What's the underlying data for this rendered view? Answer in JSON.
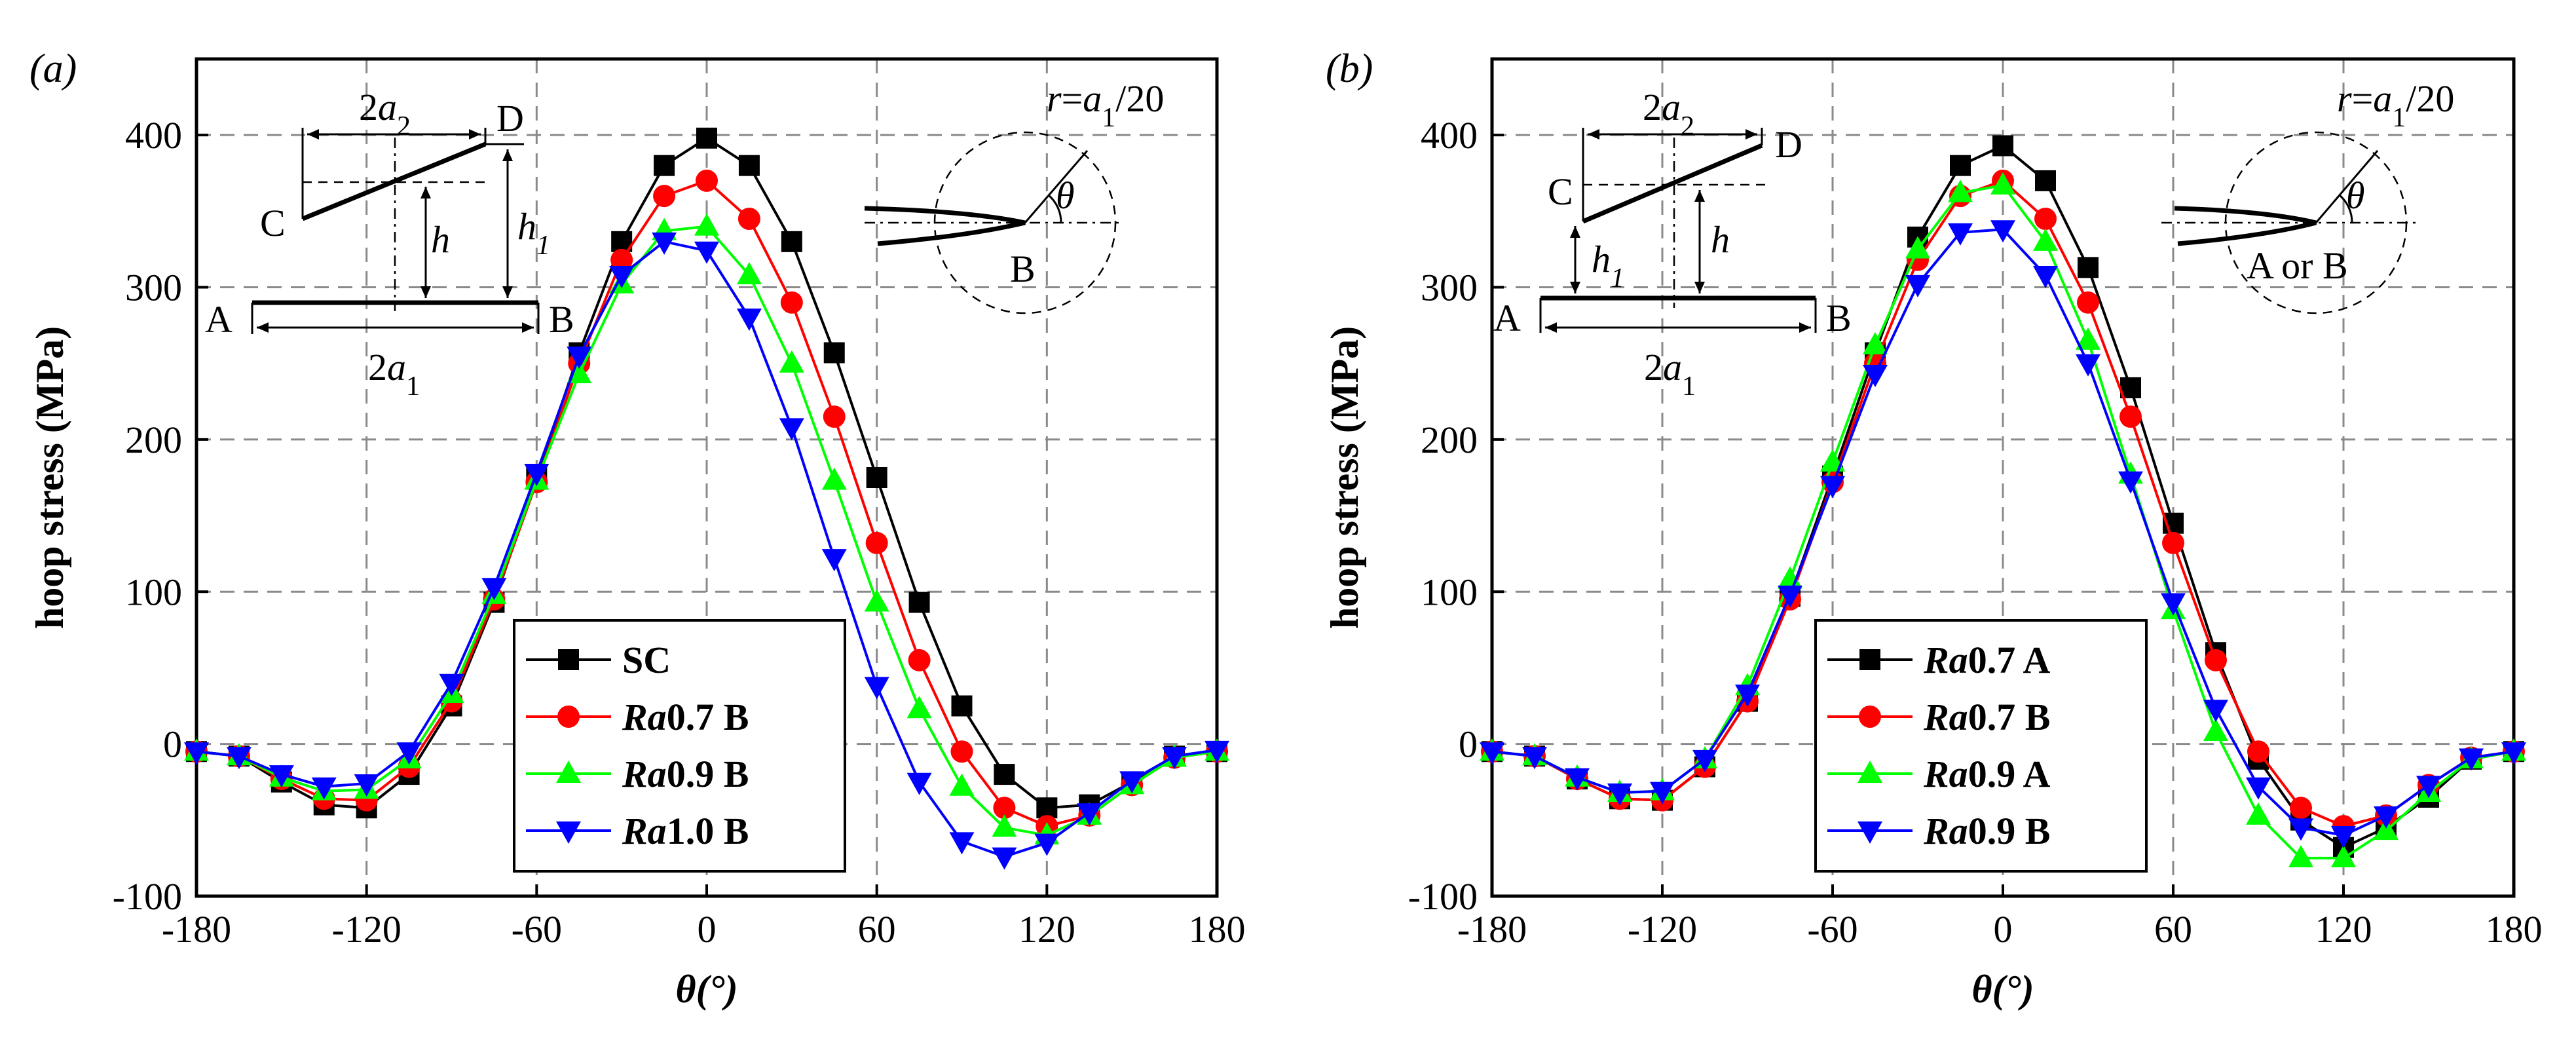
{
  "chart_data": [
    {
      "type": "line",
      "panel_label": "(a)",
      "xlabel": "θ(°)",
      "ylabel": "hoop stress (MPa)",
      "xlim": [
        -180,
        180
      ],
      "ylim": [
        -100,
        450
      ],
      "xticks": [
        -180,
        -120,
        -60,
        0,
        60,
        120,
        180
      ],
      "yticks": [
        -100,
        0,
        100,
        200,
        300,
        400
      ],
      "grid": true,
      "legend_position": "bottom-center",
      "annotation": "r=a1/20",
      "inset": {
        "left_labels": {
          "C": "C",
          "D": "D",
          "A": "A",
          "B": "B",
          "top_width": "2a2",
          "bottom_width": "2a1",
          "h": "h",
          "h1": "h1"
        },
        "right_labels": {
          "tip": "B",
          "angle": "θ"
        }
      },
      "x": [
        -180,
        -165,
        -150,
        -135,
        -120,
        -105,
        -90,
        -75,
        -60,
        -45,
        -30,
        -15,
        0,
        15,
        30,
        45,
        60,
        75,
        90,
        105,
        120,
        135,
        150,
        165,
        180
      ],
      "series": [
        {
          "name": "SC",
          "prefix": "",
          "suffix": "",
          "color": "#000000",
          "marker": "square",
          "values": [
            -5,
            -8,
            -25,
            -40,
            -42,
            -20,
            25,
            93,
            175,
            257,
            330,
            380,
            398,
            380,
            330,
            257,
            175,
            93,
            25,
            -20,
            -42,
            -40,
            -25,
            -8,
            -5
          ]
        },
        {
          "name": "Ra0.7 B",
          "prefix": "Ra",
          "suffix": "0.7 B",
          "color": "#ff0000",
          "marker": "circle",
          "values": [
            -5,
            -8,
            -23,
            -36,
            -37,
            -15,
            28,
            95,
            172,
            250,
            318,
            360,
            370,
            345,
            290,
            215,
            132,
            55,
            -5,
            -42,
            -54,
            -47,
            -27,
            -9,
            -5
          ]
        },
        {
          "name": "Ra0.9 B",
          "prefix": "Ra",
          "suffix": "0.9 B",
          "color": "#00ff00",
          "marker": "triangle-up",
          "values": [
            -5,
            -8,
            -22,
            -31,
            -30,
            -10,
            33,
            98,
            173,
            243,
            302,
            337,
            340,
            308,
            250,
            173,
            93,
            23,
            -28,
            -55,
            -60,
            -47,
            -27,
            -9,
            -5
          ]
        },
        {
          "name": "Ra1.0 B",
          "prefix": "Ra",
          "suffix": "1.0 B",
          "color": "#0000ff",
          "marker": "triangle-down",
          "values": [
            -5,
            -8,
            -20,
            -28,
            -26,
            -5,
            40,
            103,
            178,
            255,
            308,
            330,
            324,
            280,
            208,
            122,
            38,
            -25,
            -64,
            -74,
            -65,
            -45,
            -24,
            -8,
            -4
          ]
        }
      ]
    },
    {
      "type": "line",
      "panel_label": "(b)",
      "xlabel": "θ(°)",
      "ylabel": "hoop stress (MPa)",
      "xlim": [
        -180,
        180
      ],
      "ylim": [
        -100,
        450
      ],
      "xticks": [
        -180,
        -120,
        -60,
        0,
        60,
        120,
        180
      ],
      "yticks": [
        -100,
        0,
        100,
        200,
        300,
        400
      ],
      "grid": true,
      "legend_position": "bottom-center",
      "annotation": "r=a1/20",
      "inset": {
        "left_labels": {
          "C": "C",
          "D": "D",
          "A": "A",
          "B": "B",
          "top_width": "2a2",
          "bottom_width": "2a1",
          "h": "h",
          "h1": "h1"
        },
        "right_labels": {
          "tip": "A or B",
          "angle": "θ"
        }
      },
      "x": [
        -180,
        -165,
        -150,
        -135,
        -120,
        -105,
        -90,
        -75,
        -60,
        -45,
        -30,
        -15,
        0,
        15,
        30,
        45,
        60,
        75,
        90,
        105,
        120,
        135,
        150,
        165,
        180
      ],
      "series": [
        {
          "name": "Ra0.7 A",
          "prefix": "Ra",
          "suffix": "0.7 A",
          "color": "#000000",
          "marker": "square",
          "values": [
            -5,
            -8,
            -23,
            -36,
            -37,
            -15,
            28,
            97,
            176,
            257,
            333,
            380,
            393,
            370,
            313,
            234,
            145,
            60,
            -10,
            -50,
            -68,
            -55,
            -35,
            -10,
            -5
          ]
        },
        {
          "name": "Ra0.7 B",
          "prefix": "Ra",
          "suffix": "0.7 B",
          "color": "#ff0000",
          "marker": "circle",
          "values": [
            -5,
            -8,
            -23,
            -36,
            -37,
            -15,
            28,
            95,
            172,
            250,
            318,
            360,
            370,
            345,
            290,
            215,
            132,
            55,
            -5,
            -42,
            -54,
            -47,
            -27,
            -9,
            -5
          ]
        },
        {
          "name": "Ra0.9 A",
          "prefix": "Ra",
          "suffix": "0.9 A",
          "color": "#00ff00",
          "marker": "triangle-up",
          "values": [
            -5,
            -8,
            -22,
            -32,
            -31,
            -10,
            38,
            108,
            185,
            262,
            325,
            362,
            367,
            330,
            265,
            177,
            88,
            8,
            -47,
            -75,
            -75,
            -57,
            -32,
            -10,
            -5
          ]
        },
        {
          "name": "Ra0.9 B",
          "prefix": "Ra",
          "suffix": "0.9 B",
          "color": "#0000ff",
          "marker": "triangle-down",
          "values": [
            -5,
            -8,
            -22,
            -32,
            -31,
            -10,
            33,
            98,
            170,
            243,
            302,
            336,
            338,
            308,
            250,
            173,
            93,
            23,
            -28,
            -55,
            -60,
            -47,
            -27,
            -9,
            -5
          ]
        }
      ]
    }
  ]
}
